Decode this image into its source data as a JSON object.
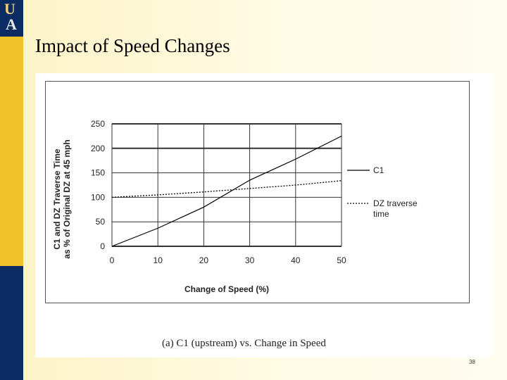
{
  "slide": {
    "title": "Impact of Speed Changes",
    "page_number": "38",
    "logo_letters": [
      "U",
      "A"
    ]
  },
  "figure": {
    "caption": "(a) C1 (upstream) vs. Change in Speed"
  },
  "chart_data": {
    "type": "line",
    "title": "",
    "xlabel": "Change of Speed (%)",
    "ylabel_lines": [
      "C1 and DZ Traverse Time",
      "as % of Original DZ at 45 mph"
    ],
    "xlim": [
      0,
      50
    ],
    "ylim": [
      0,
      250
    ],
    "x_ticks": [
      0,
      10,
      20,
      30,
      40,
      50
    ],
    "y_ticks": [
      0,
      50,
      100,
      150,
      200,
      250
    ],
    "grid": true,
    "legend_position": "right",
    "series": [
      {
        "name": "C1",
        "style": "solid",
        "color": "#000000",
        "x": [
          0,
          10,
          20,
          30,
          40,
          50
        ],
        "y": [
          0,
          37,
          80,
          135,
          178,
          225
        ]
      },
      {
        "name": "DZ traverse time",
        "legend_lines": [
          "DZ traverse",
          "time"
        ],
        "style": "dotted",
        "color": "#000000",
        "x": [
          0,
          10,
          20,
          30,
          40,
          50
        ],
        "y": [
          100,
          105,
          111,
          118,
          125,
          134
        ]
      }
    ]
  }
}
